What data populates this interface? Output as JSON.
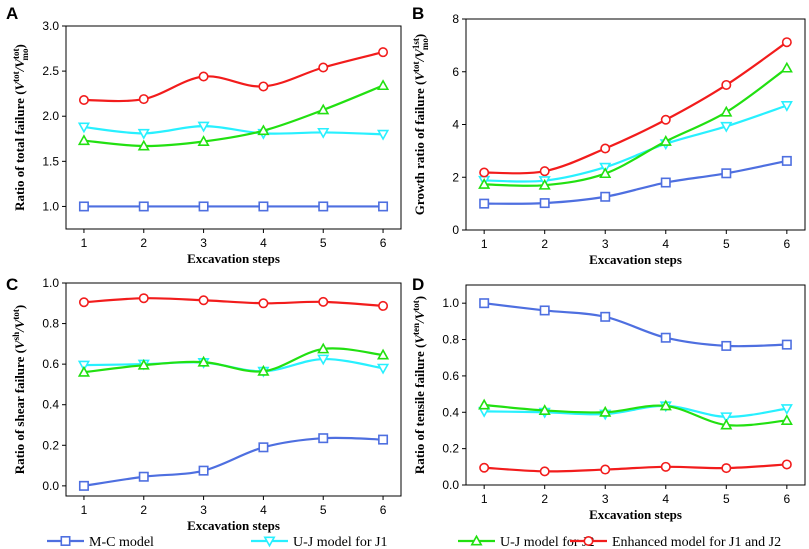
{
  "colors": {
    "mc": "#4e6fe0",
    "j1": "#28f0ff",
    "j2": "#22e011",
    "enh": "#f21c1c"
  },
  "legend": {
    "items": [
      {
        "key": "mc",
        "label": "M-C model",
        "marker": "square"
      },
      {
        "key": "j1",
        "label": "U-J model for J1",
        "marker": "triangle-down"
      },
      {
        "key": "j2",
        "label": "U-J model for J2",
        "marker": "triangle-up"
      },
      {
        "key": "enh",
        "label": "Enhanced model for J1 and J2",
        "marker": "circle"
      }
    ]
  },
  "chart_data": [
    {
      "panel": "A",
      "type": "line",
      "xlabel": "Excavation steps",
      "ylabel": "Ratio of total failure (Vtot/Vtotmo)",
      "ylabel_main": "Ratio of total failure (",
      "ylabel_v1": "V",
      "ylabel_sup1": "tot",
      "ylabel_v2": "/V",
      "ylabel_sup2": "tot",
      "ylabel_sub2": "mo",
      "ylabel_close": ")",
      "x": [
        1,
        2,
        3,
        4,
        5,
        6
      ],
      "xlim": [
        0.7,
        6.3
      ],
      "ylim": [
        0.75,
        3.0
      ],
      "yticks": [
        1.0,
        1.5,
        2.0,
        2.5,
        3.0
      ],
      "yticklabels": [
        "1.0",
        "1.5",
        "2.0",
        "2.5",
        "3.0"
      ],
      "series": [
        {
          "key": "mc",
          "name": "M-C model",
          "values": [
            1.0,
            1.0,
            1.0,
            1.0,
            1.0,
            1.0
          ]
        },
        {
          "key": "j1",
          "name": "U-J model for J1",
          "values": [
            1.88,
            1.81,
            1.89,
            1.81,
            1.82,
            1.8
          ]
        },
        {
          "key": "j2",
          "name": "U-J model for J2",
          "values": [
            1.73,
            1.67,
            1.72,
            1.84,
            2.07,
            2.34
          ]
        },
        {
          "key": "enh",
          "name": "Enhanced model for J1 and J2",
          "values": [
            2.18,
            2.19,
            2.44,
            2.33,
            2.54,
            2.71
          ]
        }
      ]
    },
    {
      "panel": "B",
      "type": "line",
      "xlabel": "Excavation steps",
      "ylabel": "Growth ratio of failure (Vtot/V1stmo)",
      "ylabel_main": "Growth ratio of failure (",
      "ylabel_v1": "V",
      "ylabel_sup1": "tot",
      "ylabel_v2": "/V",
      "ylabel_sup2": "1st",
      "ylabel_sub2": "mo",
      "ylabel_close": ")",
      "x": [
        1,
        2,
        3,
        4,
        5,
        6
      ],
      "xlim": [
        0.7,
        6.3
      ],
      "ylim": [
        0,
        8
      ],
      "yticks": [
        0,
        2,
        4,
        6,
        8
      ],
      "yticklabels": [
        "0",
        "2",
        "4",
        "6",
        "8"
      ],
      "series": [
        {
          "key": "mc",
          "name": "M-C model",
          "values": [
            1.0,
            1.02,
            1.26,
            1.8,
            2.15,
            2.62
          ]
        },
        {
          "key": "j1",
          "name": "U-J model for J1",
          "values": [
            1.88,
            1.87,
            2.38,
            3.27,
            3.93,
            4.72
          ]
        },
        {
          "key": "j2",
          "name": "U-J model for J2",
          "values": [
            1.73,
            1.7,
            2.14,
            3.36,
            4.47,
            6.14
          ]
        },
        {
          "key": "enh",
          "name": "Enhanced model for J1 and J2",
          "values": [
            2.18,
            2.23,
            3.09,
            4.18,
            5.5,
            7.12
          ]
        }
      ]
    },
    {
      "panel": "C",
      "type": "line",
      "xlabel": "Excavation steps",
      "ylabel": "Ratio of shear failure (Vsh/Vtot)",
      "ylabel_main": "Ratio of shear failure (",
      "ylabel_v1": "V",
      "ylabel_sup1": "sh",
      "ylabel_v2": "/V",
      "ylabel_sup2": "tot",
      "ylabel_sub2": "",
      "ylabel_close": ")",
      "x": [
        1,
        2,
        3,
        4,
        5,
        6
      ],
      "xlim": [
        0.7,
        6.3
      ],
      "ylim": [
        -0.05,
        1.0
      ],
      "yticks": [
        0.0,
        0.2,
        0.4,
        0.6,
        0.8,
        1.0
      ],
      "yticklabels": [
        "0.0",
        "0.2",
        "0.4",
        "0.6",
        "0.8",
        "1.0"
      ],
      "series": [
        {
          "key": "mc",
          "name": "M-C model",
          "values": [
            0.0,
            0.045,
            0.075,
            0.19,
            0.235,
            0.228
          ]
        },
        {
          "key": "j1",
          "name": "U-J model for J1",
          "values": [
            0.595,
            0.6,
            0.608,
            0.565,
            0.625,
            0.58
          ]
        },
        {
          "key": "j2",
          "name": "U-J model for J2",
          "values": [
            0.56,
            0.595,
            0.61,
            0.565,
            0.675,
            0.645
          ]
        },
        {
          "key": "enh",
          "name": "Enhanced model for J1 and J2",
          "values": [
            0.905,
            0.925,
            0.915,
            0.9,
            0.907,
            0.887
          ]
        }
      ]
    },
    {
      "panel": "D",
      "type": "line",
      "xlabel": "Excavation steps",
      "ylabel": "Ratio of tensile failure (Vten/Vtot)",
      "ylabel_main": "Ratio of tensile failure (",
      "ylabel_v1": "V",
      "ylabel_sup1": "ten",
      "ylabel_v2": "/V",
      "ylabel_sup2": "tot",
      "ylabel_sub2": "",
      "ylabel_close": ")",
      "x": [
        1,
        2,
        3,
        4,
        5,
        6
      ],
      "xlim": [
        0.7,
        6.3
      ],
      "ylim": [
        0.0,
        1.1
      ],
      "yticks": [
        0.0,
        0.2,
        0.4,
        0.6,
        0.8,
        1.0
      ],
      "yticklabels": [
        "0.0",
        "0.2",
        "0.4",
        "0.6",
        "0.8",
        "1.0"
      ],
      "series": [
        {
          "key": "mc",
          "name": "M-C model",
          "values": [
            1.0,
            0.96,
            0.925,
            0.81,
            0.765,
            0.772
          ]
        },
        {
          "key": "j1",
          "name": "U-J model for J1",
          "values": [
            0.405,
            0.4,
            0.39,
            0.435,
            0.375,
            0.42
          ]
        },
        {
          "key": "j2",
          "name": "U-J model for J2",
          "values": [
            0.44,
            0.41,
            0.4,
            0.435,
            0.33,
            0.355
          ]
        },
        {
          "key": "enh",
          "name": "Enhanced model for J1 and J2",
          "values": [
            0.095,
            0.075,
            0.085,
            0.1,
            0.093,
            0.113
          ]
        }
      ]
    }
  ]
}
